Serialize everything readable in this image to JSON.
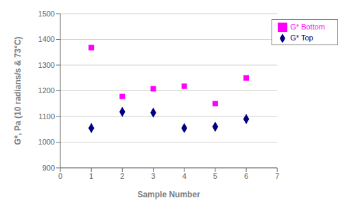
{
  "chart_data": {
    "type": "scatter",
    "xlabel": "Sample Number",
    "ylabel": "G*, Pa (10 radians/s & 73°C)",
    "x": [
      1,
      2,
      3,
      4,
      5,
      6
    ],
    "series": [
      {
        "name": "G* Top",
        "color": "#000080",
        "marker": "diamond",
        "values": [
          1055,
          1118,
          1115,
          1055,
          1060,
          1090
        ]
      },
      {
        "name": "G* Bottom",
        "color": "#FF00FF",
        "marker": "square",
        "values": [
          1368,
          1178,
          1208,
          1218,
          1150,
          1250
        ]
      }
    ],
    "xlim": [
      0,
      7
    ],
    "ylim": [
      900,
      1500
    ],
    "xticks": [
      0,
      1,
      2,
      3,
      4,
      5,
      6,
      7
    ],
    "yticks": [
      900,
      1000,
      1100,
      1200,
      1300,
      1400,
      1500
    ],
    "grid": "y",
    "legend": "upper right"
  }
}
